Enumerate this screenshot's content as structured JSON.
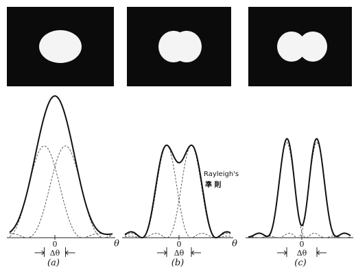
{
  "panels": [
    {
      "label": "(a)",
      "origin": "0",
      "separation": "Δθ",
      "axis": "θ"
    },
    {
      "label": "(b)",
      "origin": "0",
      "separation": "Δθ",
      "axis": "θ",
      "annotation": {
        "name": "Rayleigh's",
        "term": "準 則"
      }
    },
    {
      "label": "(c)",
      "origin": "0",
      "separation": "Δθ"
    }
  ]
}
